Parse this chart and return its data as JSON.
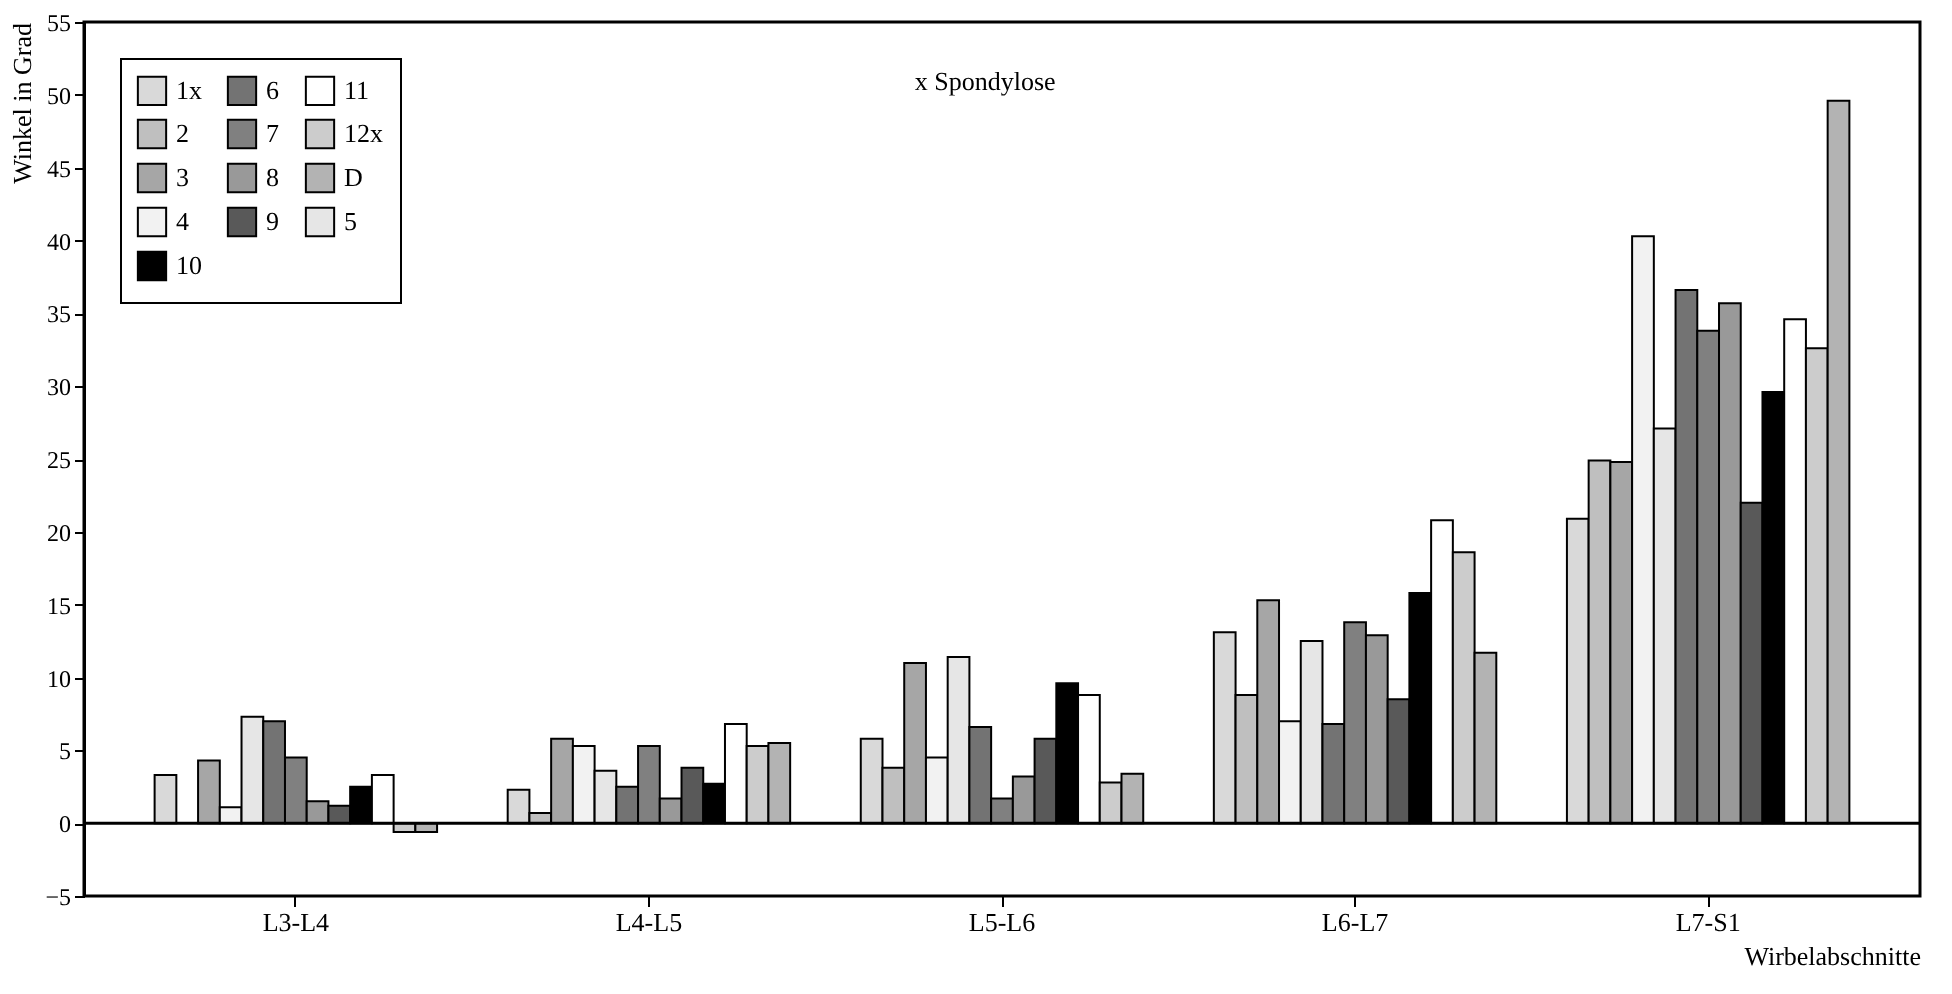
{
  "chart_data": {
    "type": "bar",
    "xlabel": "Wirbelabschnitte",
    "ylabel": "Winkel in Grad",
    "categories": [
      "L3-L4",
      "L4-L5",
      "L5-L6",
      "L6-L7",
      "L7-S1"
    ],
    "series": [
      {
        "name": "1x",
        "color": "#d9d9d9",
        "values": [
          3.3,
          2.3,
          5.8,
          13.1,
          20.9
        ]
      },
      {
        "name": "2",
        "color": "#bfbfbf",
        "values": [
          null,
          0.7,
          3.8,
          8.8,
          24.9
        ]
      },
      {
        "name": "3",
        "color": "#a6a6a6",
        "values": [
          4.3,
          5.8,
          11.0,
          15.3,
          24.8
        ]
      },
      {
        "name": "4",
        "color": "#f2f2f2",
        "values": [
          1.1,
          5.3,
          4.5,
          7.0,
          40.3
        ]
      },
      {
        "name": "5",
        "color": "#e6e6e6",
        "values": [
          7.3,
          3.6,
          11.4,
          12.5,
          27.1
        ]
      },
      {
        "name": "6",
        "color": "#737373",
        "values": [
          7.0,
          2.5,
          6.6,
          6.8,
          36.6
        ]
      },
      {
        "name": "7",
        "color": "#808080",
        "values": [
          4.5,
          5.3,
          1.7,
          13.8,
          33.8
        ]
      },
      {
        "name": "8",
        "color": "#999999",
        "values": [
          1.5,
          1.7,
          3.2,
          12.9,
          35.7
        ]
      },
      {
        "name": "9",
        "color": "#595959",
        "values": [
          1.2,
          3.8,
          5.8,
          8.5,
          22.0
        ]
      },
      {
        "name": "10",
        "color": "#000000",
        "values": [
          2.5,
          2.7,
          9.6,
          15.8,
          29.6
        ]
      },
      {
        "name": "11",
        "color": "#ffffff",
        "values": [
          3.3,
          6.8,
          8.8,
          20.8,
          34.6
        ]
      },
      {
        "name": "12x",
        "color": "#cccccc",
        "values": [
          -0.6,
          5.3,
          2.8,
          18.6,
          32.6
        ]
      },
      {
        "name": "D",
        "color": "#b3b3b3",
        "values": [
          -0.6,
          5.5,
          3.4,
          11.7,
          49.6
        ]
      }
    ],
    "ylim": [
      -5,
      55
    ],
    "yticks": [
      -5,
      0,
      5,
      10,
      15,
      20,
      25,
      30,
      35,
      40,
      45,
      50,
      55
    ],
    "ref_lines": [
      {
        "axis": "y",
        "value": 0
      }
    ],
    "annotations": [
      "x Spondylose"
    ],
    "grid": false,
    "legend": "top left"
  }
}
